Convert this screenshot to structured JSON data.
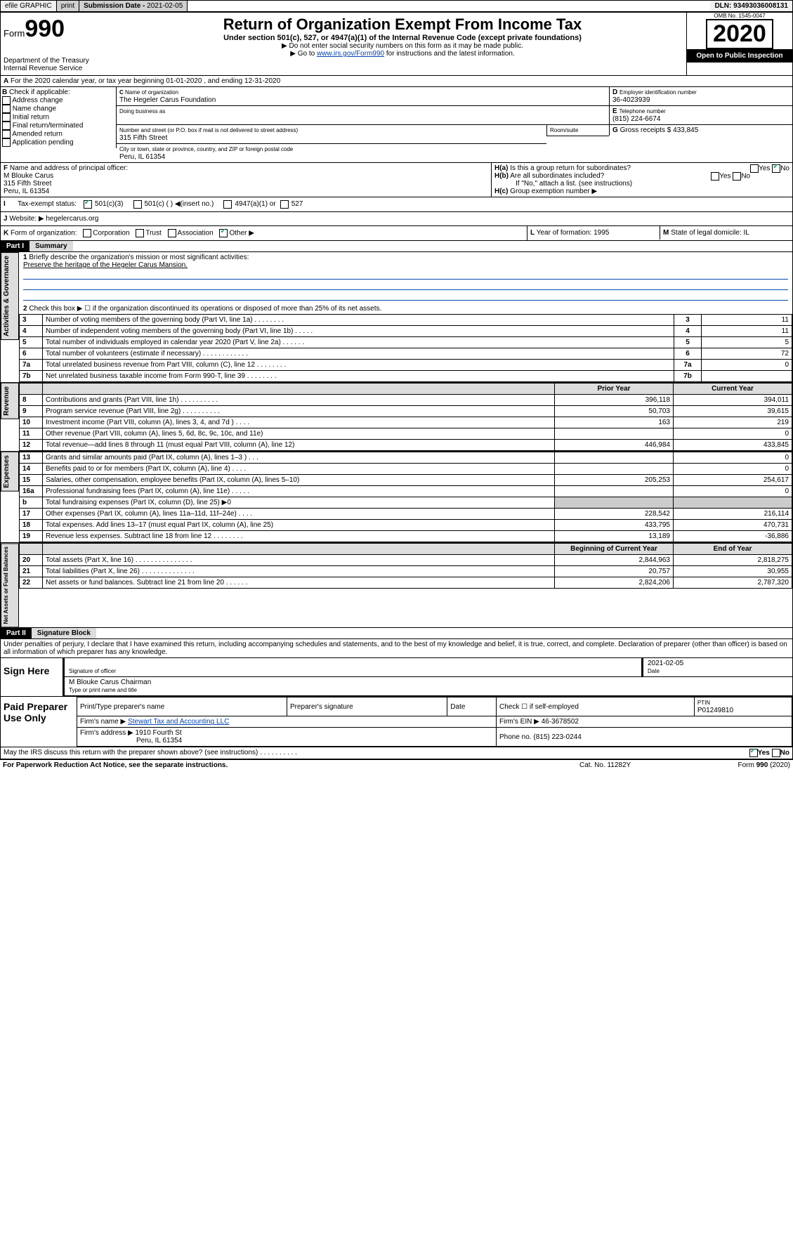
{
  "topbar": {
    "efile": "efile GRAPHIC",
    "print": "print",
    "subdate_lbl": "Submission Date - ",
    "subdate": "2021-02-05",
    "dln_lbl": "DLN: ",
    "dln": "93493036008131"
  },
  "hdr": {
    "form_lbl": "Form",
    "form_no": "990",
    "dept": "Department of the Treasury",
    "irs": "Internal Revenue Service",
    "title": "Return of Organization Exempt From Income Tax",
    "subtitle": "Under section 501(c), 527, or 4947(a)(1) of the Internal Revenue Code (except private foundations)",
    "warn1": "▶ Do not enter social security numbers on this form as it may be made public.",
    "warn2_pre": "▶ Go to ",
    "warn2_link": "www.irs.gov/Form990",
    "warn2_post": " for instructions and the latest information.",
    "omb": "OMB No. 1545-0047",
    "year": "2020",
    "public": "Open to Public Inspection"
  },
  "A": {
    "line": "For the 2020 calendar year, or tax year beginning 01-01-2020   , and ending 12-31-2020"
  },
  "B": {
    "lbl": "Check if applicable:",
    "opts": [
      "Address change",
      "Name change",
      "Initial return",
      "Final return/terminated",
      "Amended return",
      "Application pending"
    ]
  },
  "C": {
    "name_lbl": "Name of organization",
    "name": "The Hegeler Carus Foundation",
    "dba_lbl": "Doing business as",
    "addr_lbl": "Number and street (or P.O. box if mail is not delivered to street address)",
    "room_lbl": "Room/suite",
    "addr": "315 Fifth Street",
    "city_lbl": "City or town, state or province, country, and ZIP or foreign postal code",
    "city": "Peru, IL  61354"
  },
  "D": {
    "lbl": "Employer identification number",
    "val": "36-4023939"
  },
  "E": {
    "lbl": "Telephone number",
    "val": "(815) 224-6674"
  },
  "F": {
    "lbl": "Name and address of principal officer:",
    "name": "M Blouke Carus",
    "addr": "315 Fifth Street",
    "city": "Peru, IL  61354"
  },
  "G": {
    "lbl": "Gross receipts $",
    "val": "433,845"
  },
  "H": {
    "a": "Is this a group return for subordinates?",
    "b": "Are all subordinates included?",
    "note": "If \"No,\" attach a list. (see instructions)",
    "c": "Group exemption number ▶"
  },
  "I": {
    "lbl": "Tax-exempt status:",
    "o1": "501(c)(3)",
    "o2": "501(c) (  ) ◀(insert no.)",
    "o3": "4947(a)(1) or",
    "o4": "527"
  },
  "J": {
    "lbl": "Website: ▶",
    "val": "hegelercarus.org"
  },
  "K": {
    "lbl": "Form of organization:",
    "opts": [
      "Corporation",
      "Trust",
      "Association",
      "Other ▶"
    ]
  },
  "L": {
    "lbl": "Year of formation:",
    "val": "1995"
  },
  "M": {
    "lbl": "State of legal domicile:",
    "val": "IL"
  },
  "partI": {
    "hdr": "Part I",
    "title": "Summary"
  },
  "gov": {
    "vlabel": "Activities & Governance",
    "l1": "Briefly describe the organization's mission or most significant activities:",
    "l1v": "Preserve the heritage of the Hegeler Carus Mansion.",
    "l2": "Check this box ▶ ☐  if the organization discontinued its operations or disposed of more than 25% of its net assets.",
    "rows": [
      {
        "n": "3",
        "t": "Number of voting members of the governing body (Part VI, line 1a)  .   .   .   .   .   .   .   .",
        "box": "3",
        "v": "11"
      },
      {
        "n": "4",
        "t": "Number of independent voting members of the governing body (Part VI, line 1b)   .    .    .    .    .",
        "box": "4",
        "v": "11"
      },
      {
        "n": "5",
        "t": "Total number of individuals employed in calendar year 2020 (Part V, line 2a)    .    .    .    .    .    .",
        "box": "5",
        "v": "5"
      },
      {
        "n": "6",
        "t": "Total number of volunteers (estimate if necessary)    .    .    .    .    .    .    .    .    .    .    .    .",
        "box": "6",
        "v": "72"
      },
      {
        "n": "7a",
        "t": "Total unrelated business revenue from Part VIII, column (C), line 12   .    .    .    .    .    .    .    .",
        "box": "7a",
        "v": "0"
      },
      {
        "n": "7b",
        "t": "Net unrelated business taxable income from Form 990-T, line 39     .   .   .   .   .   .   .   .",
        "box": "7b",
        "v": ""
      }
    ]
  },
  "rev": {
    "vlabel": "Revenue",
    "head": [
      "",
      "Prior Year",
      "Current Year"
    ],
    "rows": [
      {
        "n": "8",
        "t": "Contributions and grants (Part VIII, line 1h)    .    .    .    .    .    .    .    .    .    .",
        "p": "396,118",
        "c": "394,011"
      },
      {
        "n": "9",
        "t": "Program service revenue (Part VIII, line 2g)    .    .    .    .    .    .    .    .    .    .",
        "p": "50,703",
        "c": "39,615"
      },
      {
        "n": "10",
        "t": "Investment income (Part VIII, column (A), lines 3, 4, and 7d )    .    .    .    .",
        "p": "163",
        "c": "219"
      },
      {
        "n": "11",
        "t": "Other revenue (Part VIII, column (A), lines 5, 6d, 8c, 9c, 10c, and 11e)",
        "p": "",
        "c": "0"
      },
      {
        "n": "12",
        "t": "Total revenue—add lines 8 through 11 (must equal Part VIII, column (A), line 12)",
        "p": "446,984",
        "c": "433,845"
      }
    ]
  },
  "exp": {
    "vlabel": "Expenses",
    "rows": [
      {
        "n": "13",
        "t": "Grants and similar amounts paid (Part IX, column (A), lines 1–3 )    .    .    .",
        "p": "",
        "c": "0"
      },
      {
        "n": "14",
        "t": "Benefits paid to or for members (Part IX, column (A), line 4)    .    .    .    .",
        "p": "",
        "c": "0"
      },
      {
        "n": "15",
        "t": "Salaries, other compensation, employee benefits (Part IX, column (A), lines 5–10)",
        "p": "205,253",
        "c": "254,617"
      },
      {
        "n": "16a",
        "t": "Professional fundraising fees (Part IX, column (A), line 11e)    .    .    .    .    .",
        "p": "",
        "c": "0"
      },
      {
        "n": "b",
        "t": "Total fundraising expenses (Part IX, column (D), line 25) ▶0",
        "p": null,
        "c": null
      },
      {
        "n": "17",
        "t": "Other expenses (Part IX, column (A), lines 11a–11d, 11f–24e)   .    .    .    .",
        "p": "228,542",
        "c": "216,114"
      },
      {
        "n": "18",
        "t": "Total expenses. Add lines 13–17 (must equal Part IX, column (A), line 25)",
        "p": "433,795",
        "c": "470,731"
      },
      {
        "n": "19",
        "t": "Revenue less expenses. Subtract line 18 from line 12   .   .   .   .   .   .   .   .",
        "p": "13,189",
        "c": "-36,886"
      }
    ]
  },
  "net": {
    "vlabel": "Net Assets or Fund Balances",
    "head": [
      "",
      "Beginning of Current Year",
      "End of Year"
    ],
    "rows": [
      {
        "n": "20",
        "t": "Total assets (Part X, line 16)   .   .   .   .   .   .   .   .   .   .   .   .   .   .   .",
        "p": "2,844,963",
        "c": "2,818,275"
      },
      {
        "n": "21",
        "t": "Total liabilities (Part X, line 26)   .   .   .   .   .   .   .   .   .   .   .   .   .   .",
        "p": "20,757",
        "c": "30,955"
      },
      {
        "n": "22",
        "t": "Net assets or fund balances. Subtract line 21 from line 20   .   .   .   .   .   .",
        "p": "2,824,206",
        "c": "2,787,320"
      }
    ]
  },
  "partII": {
    "hdr": "Part II",
    "title": "Signature Block",
    "decl": "Under penalties of perjury, I declare that I have examined this return, including accompanying schedules and statements, and to the best of my knowledge and belief, it is true, correct, and complete. Declaration of preparer (other than officer) is based on all information of which preparer has any knowledge."
  },
  "sign": {
    "here": "Sign Here",
    "sig_lbl": "Signature of officer",
    "date_lbl": "Date",
    "date": "2021-02-05",
    "name": "M Blouke Carus  Chairman",
    "name_lbl": "Type or print name and title"
  },
  "prep": {
    "use": "Paid Preparer Use Only",
    "c1": "Print/Type preparer's name",
    "c2": "Preparer's signature",
    "c3": "Date",
    "c4_pre": "Check ☐ if self-employed",
    "c5": "PTIN",
    "ptin": "P01249810",
    "firm_lbl": "Firm's name    ▶",
    "firm": "Stewart Tax and Accounting LLC",
    "ein_lbl": "Firm's EIN ▶",
    "ein": "46-3678502",
    "addr_lbl": "Firm's address ▶",
    "addr": "1910 Fourth St",
    "city": "Peru, IL  61354",
    "phone_lbl": "Phone no.",
    "phone": "(815) 223-0244"
  },
  "foot": {
    "q": "May the IRS discuss this return with the preparer shown above? (see instructions)    .    .    .    .    .    .    .    .    .    .",
    "pra": "For Paperwork Reduction Act Notice, see the separate instructions.",
    "cat": "Cat. No. 11282Y",
    "form": "Form 990 (2020)"
  }
}
